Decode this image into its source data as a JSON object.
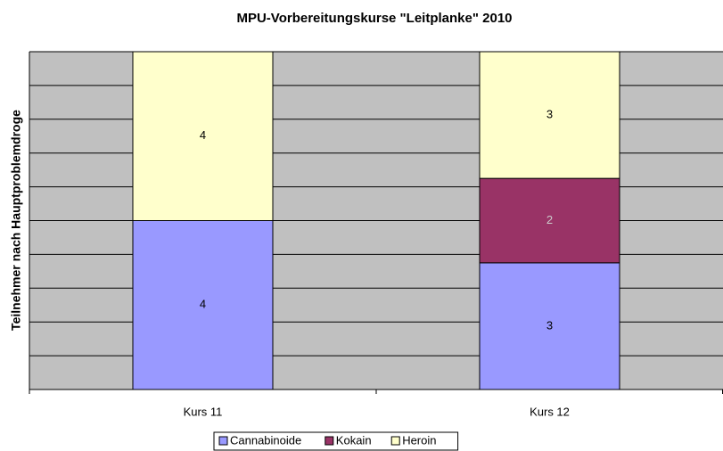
{
  "chart_data": {
    "type": "bar",
    "stacked": "percent",
    "title": "MPU-Vorbereitungskurse \"Leitplanke\" 2010",
    "y_label": "Teilnehmer nach Hauptproblemdroge",
    "categories": [
      "Kurs 11",
      "Kurs 12"
    ],
    "series": [
      {
        "name": "Cannabinoide",
        "color": "#9999ff",
        "label_color": "#000000",
        "values": [
          4,
          3
        ]
      },
      {
        "name": "Kokain",
        "color": "#993366",
        "label_color": "#cccccc",
        "values": [
          0,
          2
        ]
      },
      {
        "name": "Heroin",
        "color": "#ffffcc",
        "label_color": "#000000",
        "values": [
          4,
          3
        ]
      }
    ],
    "ylim": [
      0,
      100
    ],
    "yticks": [
      0,
      10,
      20,
      30,
      40,
      50,
      60,
      70,
      80,
      90,
      100
    ],
    "tick_labels": false,
    "grid": true,
    "plot_color": "#c0c0c0",
    "legend": "bottom"
  }
}
